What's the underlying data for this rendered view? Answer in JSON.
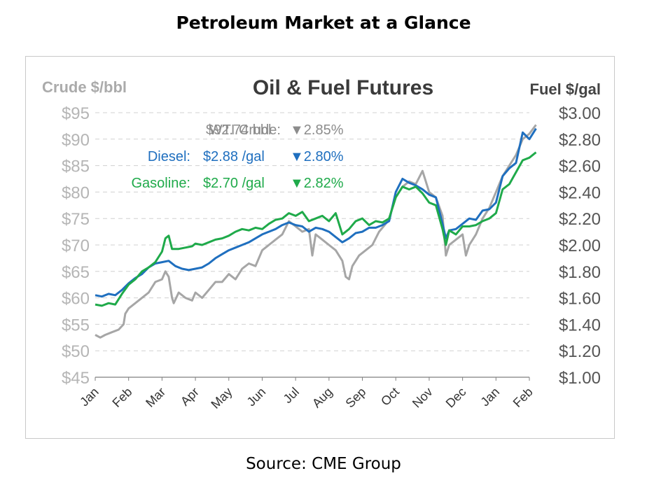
{
  "page": {
    "title": "Petroleum Market at a Glance",
    "source": "Source: CME Group"
  },
  "chart_data": {
    "type": "line",
    "title": "Oil & Fuel Futures",
    "left_axis": {
      "label": "Crude $/bbl",
      "ticks": [
        "$95",
        "$90",
        "$85",
        "$80",
        "$75",
        "$70",
        "$65",
        "$60",
        "$55",
        "$50",
        "$45"
      ],
      "range": [
        45,
        95
      ],
      "color": "#b0b0b0"
    },
    "right_axis": {
      "label": "Fuel $/gal",
      "ticks": [
        "$3.00",
        "$2.80",
        "$2.60",
        "$2.40",
        "$2.20",
        "$2.00",
        "$1.80",
        "$1.60",
        "$1.40",
        "$1.20",
        "$1.00"
      ],
      "range": [
        1.0,
        3.0
      ],
      "color": "#666666"
    },
    "x_ticks": [
      "Jan",
      "Feb",
      "Mar",
      "Apr",
      "May",
      "Jun",
      "Jul",
      "Aug",
      "Sep",
      "Oct",
      "Nov",
      "Dec",
      "Jan",
      "Feb"
    ],
    "grid": "horizontal dashed",
    "legend": [
      {
        "name": "WTI Crude:",
        "value": "$92.74 bbl",
        "change": "▼2.85%",
        "color": "#8c8c8c"
      },
      {
        "name": "Diesel:",
        "value": "$2.88 /gal",
        "change": "▼2.80%",
        "color": "#1f6fbf"
      },
      {
        "name": "Gasoline:",
        "value": "$2.70 /gal",
        "change": "▼2.82%",
        "color": "#1faa4a"
      }
    ],
    "series": [
      {
        "name": "WTI Crude",
        "axis": "left",
        "color": "#a6a6a6",
        "points": [
          [
            0,
            53
          ],
          [
            0.15,
            52.5
          ],
          [
            0.3,
            53
          ],
          [
            0.5,
            53.5
          ],
          [
            0.7,
            54
          ],
          [
            0.85,
            55
          ],
          [
            0.9,
            57
          ],
          [
            1.0,
            58
          ],
          [
            1.2,
            59
          ],
          [
            1.4,
            60
          ],
          [
            1.6,
            61
          ],
          [
            1.8,
            63
          ],
          [
            2.0,
            63.5
          ],
          [
            2.1,
            65
          ],
          [
            2.2,
            64
          ],
          [
            2.3,
            60
          ],
          [
            2.35,
            59
          ],
          [
            2.5,
            61
          ],
          [
            2.7,
            60
          ],
          [
            2.9,
            59.5
          ],
          [
            3.0,
            61
          ],
          [
            3.2,
            60
          ],
          [
            3.4,
            61.5
          ],
          [
            3.6,
            63
          ],
          [
            3.8,
            63
          ],
          [
            4.0,
            64.5
          ],
          [
            4.2,
            63.5
          ],
          [
            4.4,
            65.5
          ],
          [
            4.6,
            66.5
          ],
          [
            4.8,
            66
          ],
          [
            5.0,
            69
          ],
          [
            5.2,
            70
          ],
          [
            5.4,
            71
          ],
          [
            5.6,
            72
          ],
          [
            5.8,
            74.5
          ],
          [
            6.0,
            73.5
          ],
          [
            6.2,
            72.5
          ],
          [
            6.4,
            73
          ],
          [
            6.5,
            68
          ],
          [
            6.6,
            72
          ],
          [
            6.8,
            71
          ],
          [
            7.0,
            70
          ],
          [
            7.2,
            69
          ],
          [
            7.4,
            67
          ],
          [
            7.5,
            64
          ],
          [
            7.6,
            63.5
          ],
          [
            7.7,
            66
          ],
          [
            7.9,
            68
          ],
          [
            8.1,
            69
          ],
          [
            8.3,
            70
          ],
          [
            8.5,
            72.5
          ],
          [
            8.7,
            74
          ],
          [
            8.8,
            75
          ],
          [
            9.0,
            79
          ],
          [
            9.2,
            81
          ],
          [
            9.4,
            82
          ],
          [
            9.6,
            81.5
          ],
          [
            9.8,
            84
          ],
          [
            10.0,
            80
          ],
          [
            10.2,
            79
          ],
          [
            10.4,
            75.5
          ],
          [
            10.5,
            68
          ],
          [
            10.6,
            70
          ],
          [
            10.8,
            71
          ],
          [
            11.0,
            72
          ],
          [
            11.1,
            68
          ],
          [
            11.2,
            70
          ],
          [
            11.4,
            72
          ],
          [
            11.6,
            75
          ],
          [
            11.8,
            77
          ],
          [
            12.0,
            80
          ],
          [
            12.2,
            83
          ],
          [
            12.4,
            85
          ],
          [
            12.6,
            87
          ],
          [
            12.8,
            90
          ],
          [
            13.0,
            91
          ],
          [
            13.2,
            92.7
          ]
        ]
      },
      {
        "name": "Diesel",
        "axis": "right",
        "color": "#1f6fbf",
        "points": [
          [
            0,
            1.62
          ],
          [
            0.2,
            1.61
          ],
          [
            0.4,
            1.63
          ],
          [
            0.6,
            1.62
          ],
          [
            0.8,
            1.66
          ],
          [
            1.0,
            1.71
          ],
          [
            1.2,
            1.75
          ],
          [
            1.4,
            1.78
          ],
          [
            1.6,
            1.83
          ],
          [
            1.8,
            1.86
          ],
          [
            2.0,
            1.87
          ],
          [
            2.2,
            1.88
          ],
          [
            2.4,
            1.84
          ],
          [
            2.6,
            1.82
          ],
          [
            2.8,
            1.81
          ],
          [
            3.0,
            1.82
          ],
          [
            3.2,
            1.83
          ],
          [
            3.4,
            1.86
          ],
          [
            3.6,
            1.9
          ],
          [
            3.8,
            1.93
          ],
          [
            4.0,
            1.96
          ],
          [
            4.2,
            1.98
          ],
          [
            4.4,
            2.0
          ],
          [
            4.6,
            2.02
          ],
          [
            4.8,
            2.05
          ],
          [
            5.0,
            2.08
          ],
          [
            5.2,
            2.1
          ],
          [
            5.4,
            2.12
          ],
          [
            5.6,
            2.15
          ],
          [
            5.8,
            2.17
          ],
          [
            6.0,
            2.15
          ],
          [
            6.2,
            2.14
          ],
          [
            6.4,
            2.1
          ],
          [
            6.6,
            2.13
          ],
          [
            6.8,
            2.12
          ],
          [
            7.0,
            2.1
          ],
          [
            7.2,
            2.06
          ],
          [
            7.4,
            2.02
          ],
          [
            7.6,
            2.05
          ],
          [
            7.8,
            2.09
          ],
          [
            8.0,
            2.1
          ],
          [
            8.2,
            2.13
          ],
          [
            8.4,
            2.13
          ],
          [
            8.6,
            2.15
          ],
          [
            8.8,
            2.18
          ],
          [
            9.0,
            2.4
          ],
          [
            9.2,
            2.5
          ],
          [
            9.4,
            2.47
          ],
          [
            9.6,
            2.45
          ],
          [
            9.8,
            2.42
          ],
          [
            10.0,
            2.38
          ],
          [
            10.2,
            2.36
          ],
          [
            10.4,
            2.16
          ],
          [
            10.5,
            2.05
          ],
          [
            10.6,
            2.11
          ],
          [
            10.8,
            2.12
          ],
          [
            11.0,
            2.16
          ],
          [
            11.2,
            2.2
          ],
          [
            11.4,
            2.19
          ],
          [
            11.6,
            2.26
          ],
          [
            11.8,
            2.27
          ],
          [
            12.0,
            2.32
          ],
          [
            12.2,
            2.52
          ],
          [
            12.4,
            2.58
          ],
          [
            12.6,
            2.62
          ],
          [
            12.8,
            2.85
          ],
          [
            13.0,
            2.8
          ],
          [
            13.2,
            2.88
          ]
        ]
      },
      {
        "name": "Gasoline",
        "axis": "right",
        "color": "#1faa4a",
        "points": [
          [
            0,
            1.55
          ],
          [
            0.2,
            1.54
          ],
          [
            0.4,
            1.56
          ],
          [
            0.6,
            1.55
          ],
          [
            0.8,
            1.63
          ],
          [
            1.0,
            1.7
          ],
          [
            1.2,
            1.74
          ],
          [
            1.4,
            1.8
          ],
          [
            1.6,
            1.83
          ],
          [
            1.8,
            1.87
          ],
          [
            2.0,
            1.95
          ],
          [
            2.1,
            2.05
          ],
          [
            2.2,
            2.07
          ],
          [
            2.3,
            1.97
          ],
          [
            2.5,
            1.97
          ],
          [
            2.7,
            1.98
          ],
          [
            2.9,
            1.99
          ],
          [
            3.0,
            2.01
          ],
          [
            3.2,
            2.0
          ],
          [
            3.4,
            2.02
          ],
          [
            3.6,
            2.04
          ],
          [
            3.8,
            2.05
          ],
          [
            4.0,
            2.07
          ],
          [
            4.2,
            2.1
          ],
          [
            4.4,
            2.12
          ],
          [
            4.6,
            2.11
          ],
          [
            4.8,
            2.13
          ],
          [
            5.0,
            2.12
          ],
          [
            5.2,
            2.16
          ],
          [
            5.4,
            2.19
          ],
          [
            5.6,
            2.2
          ],
          [
            5.8,
            2.24
          ],
          [
            6.0,
            2.22
          ],
          [
            6.2,
            2.25
          ],
          [
            6.4,
            2.18
          ],
          [
            6.6,
            2.2
          ],
          [
            6.8,
            2.22
          ],
          [
            7.0,
            2.18
          ],
          [
            7.2,
            2.24
          ],
          [
            7.4,
            2.08
          ],
          [
            7.6,
            2.12
          ],
          [
            7.8,
            2.18
          ],
          [
            8.0,
            2.2
          ],
          [
            8.2,
            2.15
          ],
          [
            8.4,
            2.18
          ],
          [
            8.6,
            2.17
          ],
          [
            8.8,
            2.2
          ],
          [
            9.0,
            2.36
          ],
          [
            9.2,
            2.44
          ],
          [
            9.4,
            2.42
          ],
          [
            9.6,
            2.44
          ],
          [
            9.8,
            2.39
          ],
          [
            10.0,
            2.32
          ],
          [
            10.2,
            2.3
          ],
          [
            10.4,
            2.12
          ],
          [
            10.5,
            2.0
          ],
          [
            10.6,
            2.11
          ],
          [
            10.8,
            2.08
          ],
          [
            11.0,
            2.14
          ],
          [
            11.2,
            2.14
          ],
          [
            11.4,
            2.15
          ],
          [
            11.6,
            2.18
          ],
          [
            11.8,
            2.2
          ],
          [
            12.0,
            2.24
          ],
          [
            12.2,
            2.42
          ],
          [
            12.4,
            2.46
          ],
          [
            12.6,
            2.55
          ],
          [
            12.8,
            2.64
          ],
          [
            13.0,
            2.66
          ],
          [
            13.2,
            2.7
          ]
        ]
      }
    ]
  }
}
